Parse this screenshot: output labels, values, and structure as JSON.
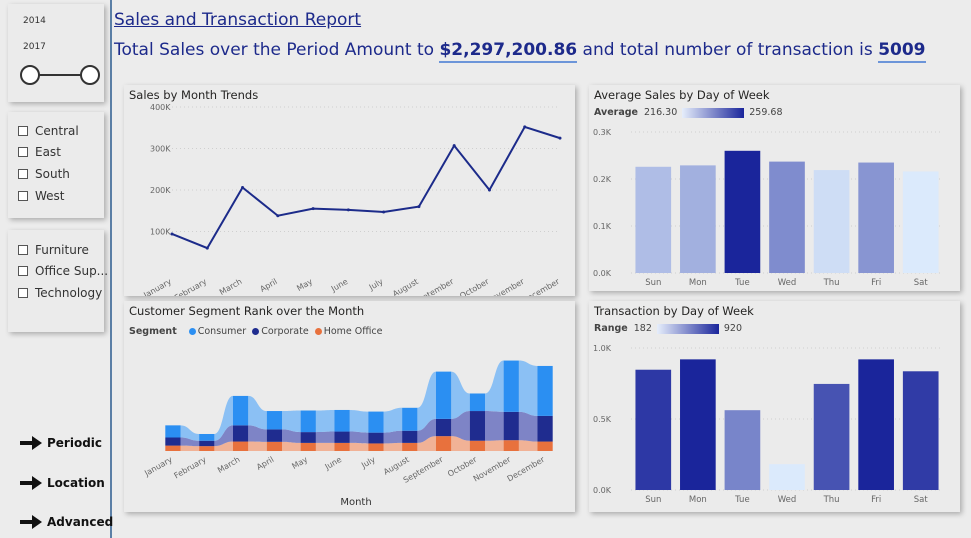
{
  "header": {
    "title": "Sales and Transaction Report",
    "prefix": "Total Sales over the Period Amount to",
    "total_sales": "$2,297,200.86",
    "middle": "and total number of transaction is",
    "transactions": "5009"
  },
  "sidebar": {
    "year_slicer": {
      "start": "2014",
      "end": "2017"
    },
    "regions": [
      "Central",
      "East",
      "South",
      "West"
    ],
    "categories": [
      "Furniture",
      "Office Sup...",
      "Technology"
    ],
    "nav": [
      {
        "label": "Periodic"
      },
      {
        "label": "Location"
      },
      {
        "label": "Advanced"
      }
    ]
  },
  "colors": {
    "line": "#1c2b8a",
    "consumer": "#2b8ff2",
    "corporate": "#1f2c8f",
    "home_office": "#e8713d",
    "bar_min": "#dbeafc",
    "bar_max": "#1a259b"
  },
  "chart_data": [
    {
      "type": "line",
      "title": "Sales by Month Trends",
      "categories": [
        "January",
        "February",
        "March",
        "April",
        "May",
        "June",
        "July",
        "August",
        "September",
        "October",
        "November",
        "December"
      ],
      "values": [
        94000,
        60000,
        206000,
        138000,
        155000,
        152000,
        147000,
        160000,
        307000,
        200000,
        352000,
        325000
      ],
      "yticks": [
        "100K",
        "200K",
        "300K",
        "400K"
      ],
      "ylim": [
        0,
        400000
      ]
    },
    {
      "type": "bar",
      "title": "Average Sales by Day of Week",
      "legend_label": "Average",
      "legend_min": "216.30",
      "legend_max": "259.68",
      "categories": [
        "Sun",
        "Mon",
        "Tue",
        "Wed",
        "Thu",
        "Fri",
        "Sat"
      ],
      "values": [
        226,
        229,
        260,
        237,
        219,
        235,
        216
      ],
      "yticks": [
        "0.0K",
        "0.1K",
        "0.2K",
        "0.3K"
      ],
      "ylim": [
        0,
        300
      ]
    },
    {
      "type": "area",
      "title": "Customer Segment Rank over the Month",
      "legend_label": "Segment",
      "xlabel": "Month",
      "categories": [
        "January",
        "February",
        "March",
        "April",
        "May",
        "June",
        "July",
        "August",
        "September",
        "October",
        "November",
        "December"
      ],
      "series": [
        {
          "name": "Consumer",
          "values": [
            45,
            25,
            109,
            68,
            80,
            80,
            78,
            85,
            175,
            65,
            190,
            185
          ]
        },
        {
          "name": "Corporate",
          "values": [
            30,
            20,
            60,
            46,
            40,
            42,
            40,
            45,
            64,
            110,
            105,
            95
          ]
        },
        {
          "name": "Home Office",
          "values": [
            20,
            18,
            35,
            34,
            30,
            30,
            28,
            30,
            55,
            38,
            40,
            35
          ]
        }
      ]
    },
    {
      "type": "bar",
      "title": "Transaction by Day of Week",
      "legend_label": "Range",
      "legend_min": "182",
      "legend_max": "920",
      "categories": [
        "Sun",
        "Mon",
        "Tue",
        "Wed",
        "Thu",
        "Fri",
        "Sat"
      ],
      "values": [
        847,
        920,
        562,
        182,
        747,
        920,
        836
      ],
      "yticks": [
        "0.0K",
        "0.5K",
        "1.0K"
      ],
      "ylim": [
        0,
        1000
      ]
    }
  ]
}
